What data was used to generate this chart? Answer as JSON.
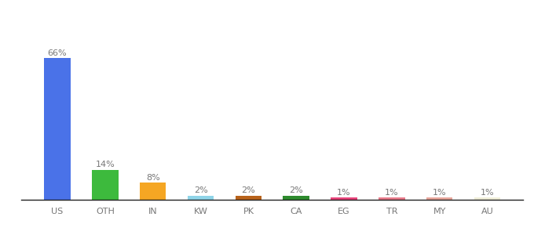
{
  "categories": [
    "US",
    "OTH",
    "IN",
    "KW",
    "PK",
    "CA",
    "EG",
    "TR",
    "MY",
    "AU"
  ],
  "values": [
    66,
    14,
    8,
    2,
    2,
    2,
    1,
    1,
    1,
    1
  ],
  "labels": [
    "66%",
    "14%",
    "8%",
    "2%",
    "2%",
    "2%",
    "1%",
    "1%",
    "1%",
    "1%"
  ],
  "colors": [
    "#4a72e8",
    "#3dba3d",
    "#f5a623",
    "#8fd4e8",
    "#b8621a",
    "#2e8b2e",
    "#e8437a",
    "#e87a8a",
    "#e8a59a",
    "#f0eed8"
  ],
  "background_color": "#ffffff",
  "bar_width": 0.55,
  "ylim": [
    0,
    80
  ],
  "label_fontsize": 8,
  "tick_fontsize": 8
}
